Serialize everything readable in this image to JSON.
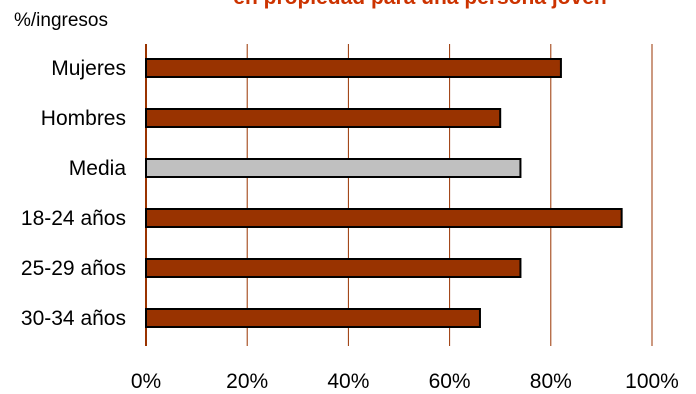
{
  "chart_data": {
    "type": "bar",
    "orientation": "horizontal",
    "title": "en propiedad para una persona joven",
    "ylabel": "%/ingresos",
    "categories": [
      "Mujeres",
      "Hombres",
      "Media",
      "18-24 años",
      "25-29 años",
      "30-34 años"
    ],
    "values": [
      82,
      70,
      74,
      94,
      74,
      66
    ],
    "xlim": [
      0,
      100
    ],
    "xticks": [
      0,
      20,
      40,
      60,
      80,
      100
    ],
    "xtick_labels": [
      "0%",
      "20%",
      "40%",
      "60%",
      "80%",
      "100%"
    ],
    "grid": "vertical",
    "colors": {
      "bar": "#993300",
      "highlight_bar": "#c0c0c0",
      "grid": "#993300",
      "title": "#cc3300"
    },
    "highlight_category": "Media"
  }
}
